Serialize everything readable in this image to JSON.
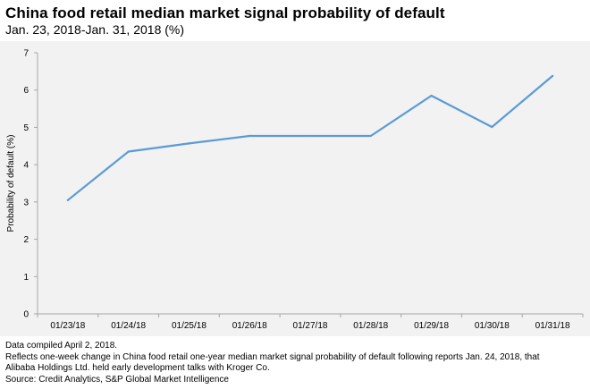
{
  "header": {
    "title": "China food retail median market signal probability of default",
    "subtitle": "Jan. 23, 2018-Jan. 31, 2018 (%)"
  },
  "chart_data": {
    "type": "line",
    "categories": [
      "01/23/18",
      "01/24/18",
      "01/25/18",
      "01/26/18",
      "01/27/18",
      "01/28/18",
      "01/29/18",
      "01/30/18",
      "01/31/18"
    ],
    "series": [
      {
        "values": [
          3.05,
          4.35,
          4.57,
          4.77,
          4.77,
          4.77,
          5.85,
          5.01,
          6.38
        ],
        "color": "#5b9bd5"
      }
    ],
    "ylabel": "Probability of default (%)",
    "ylim": [
      0,
      7
    ],
    "yticks": [
      "0",
      "1",
      "2",
      "3",
      "4",
      "5",
      "6",
      "7"
    ],
    "grid": false,
    "background": "#f2f2f2"
  },
  "notes": {
    "compiled": "Data compiled April 2, 2018.",
    "reflects_line1": "Reflects one-week change in China food retail one-year median market signal probability of default following reports Jan. 24, 2018, that",
    "reflects_line2": "Alibaba Holdings Ltd. held early development talks with Kroger Co.",
    "source": "Source: Credit Analytics, S&P Global Market Intelligence"
  }
}
